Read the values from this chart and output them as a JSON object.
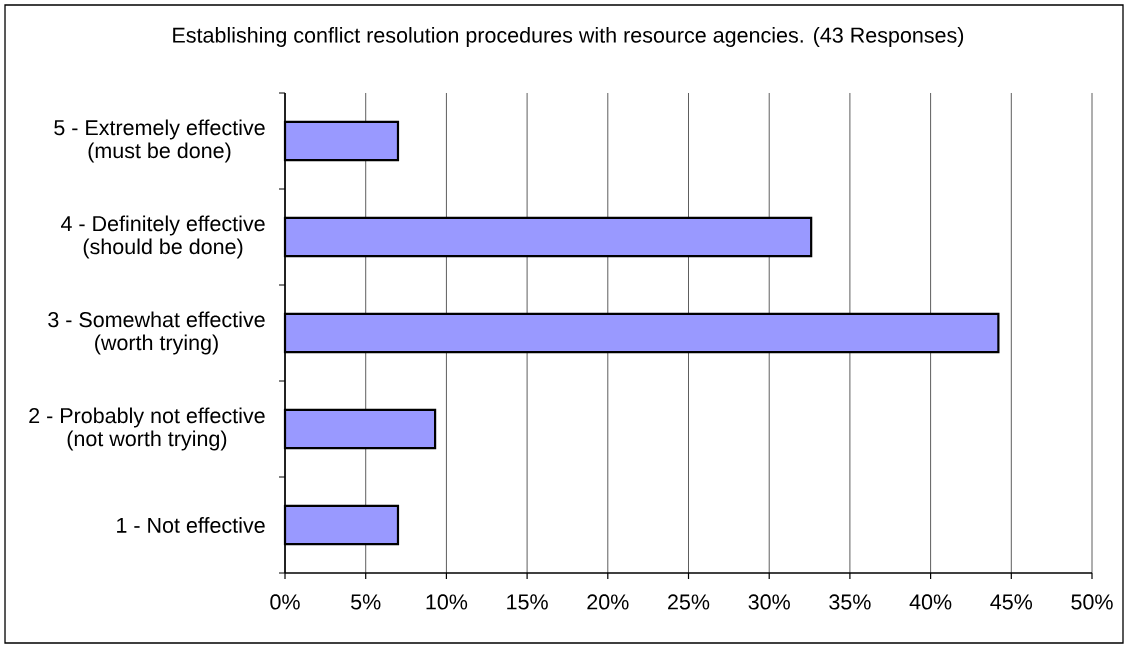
{
  "chart_data": {
    "type": "bar",
    "orientation": "horizontal",
    "title": "Establishing conflict resolution procedures with resource agencies. (43 Responses)",
    "categories": [
      "5 - Extremely effective (must be done)",
      "4 - Definitely effective (should be done)",
      "3 - Somewhat effective (worth trying)",
      "2 - Probably not effective (not worth trying)",
      "1 - Not effective"
    ],
    "values": [
      7.0,
      32.6,
      44.2,
      9.3,
      7.0
    ],
    "color": "#9999ff",
    "xlim": [
      0,
      50
    ],
    "xticks": [
      {
        "value": 0,
        "label": "0%"
      },
      {
        "value": 5,
        "label": "5%"
      },
      {
        "value": 10,
        "label": "10%"
      },
      {
        "value": 15,
        "label": "15%"
      },
      {
        "value": 20,
        "label": "20%"
      },
      {
        "value": 25,
        "label": "25%"
      },
      {
        "value": 30,
        "label": "30%"
      },
      {
        "value": 35,
        "label": "35%"
      },
      {
        "value": 40,
        "label": "40%"
      },
      {
        "value": 45,
        "label": "45%"
      },
      {
        "value": 50,
        "label": "50%"
      }
    ],
    "grid": "x"
  }
}
